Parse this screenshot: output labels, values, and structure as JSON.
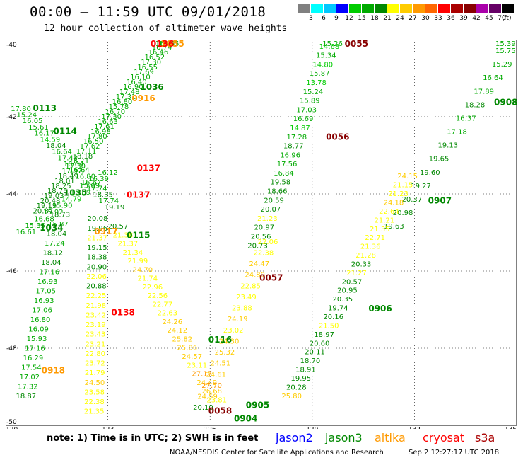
{
  "title": "00:00 – 11:59 UTC 09/01/2018",
  "subtitle": "12 hour collection of altimeter wave heights",
  "colorbar": {
    "colors": [
      "#808080",
      "#00ffff",
      "#00c8ff",
      "#0000ff",
      "#00cc00",
      "#00aa00",
      "#008800",
      "#ffff00",
      "#ffcc00",
      "#ff9900",
      "#ff6600",
      "#ff0000",
      "#aa0000",
      "#880000",
      "#aa00aa",
      "#660066",
      "#000000"
    ],
    "labels": [
      "3",
      "6",
      "9",
      "12",
      "15",
      "18",
      "21",
      "24",
      "27",
      "30",
      "33",
      "36",
      "39",
      "42",
      "45",
      "70"
    ],
    "unit": "(ft)"
  },
  "axes": {
    "x_ticks": [
      "120",
      "123",
      "126",
      "129",
      "132",
      "135"
    ],
    "y_ticks": [
      "-40",
      "-42",
      "-44",
      "-46",
      "-48",
      "-50"
    ],
    "xlim": [
      120,
      135
    ],
    "ylim": [
      -50,
      -40
    ]
  },
  "note": "note: 1) Time is in UTC; 2) SWH is in feet",
  "legend": [
    {
      "name": "jason2",
      "color": "#0000ff"
    },
    {
      "name": "jason3",
      "color": "#008800"
    },
    {
      "name": "altika",
      "color": "#ff9900"
    },
    {
      "name": "cryosat",
      "color": "#ff0000"
    },
    {
      "name": "s3a",
      "color": "#aa0000"
    }
  ],
  "credit": "NOAA/NESDIS Center for Satellite Applications and Research",
  "timestamp": "Sep  2 12:27:17 UTC 2018",
  "time_labels": [
    {
      "text": "0055",
      "lon": 129.95,
      "lat": -40.0,
      "color": "#880000"
    },
    {
      "text": "1055",
      "lon": 124.55,
      "lat": -40.0,
      "color": "#ff9900"
    },
    {
      "text": "0136",
      "lon": 124.25,
      "lat": -40.15,
      "color": "#ff0000"
    },
    {
      "text": "1036",
      "lon": 123.95,
      "lat": -41.3,
      "color": "#008800"
    },
    {
      "text": "0916",
      "lon": 123.7,
      "lat": -41.6,
      "color": "#ff9900"
    },
    {
      "text": "0113",
      "lon": 120.8,
      "lat": -41.85,
      "color": "#008800"
    },
    {
      "text": "0114",
      "lon": 121.4,
      "lat": -42.45,
      "color": "#008800"
    },
    {
      "text": "0056",
      "lon": 129.4,
      "lat": -42.6,
      "color": "#880000"
    },
    {
      "text": "0908",
      "lon": 134.6,
      "lat": -41.7,
      "color": "#008800"
    },
    {
      "text": "0137",
      "lon": 123.85,
      "lat": -43.4,
      "color": "#ff0000"
    },
    {
      "text": "0137",
      "lon": 123.55,
      "lat": -44.1,
      "color": "#ff0000"
    },
    {
      "text": "1035",
      "lon": 121.7,
      "lat": -44.05,
      "color": "#008800"
    },
    {
      "text": "0907",
      "lon": 132.4,
      "lat": -44.25,
      "color": "#008800"
    },
    {
      "text": "1034",
      "lon": 121.0,
      "lat": -44.95,
      "color": "#008800"
    },
    {
      "text": "0917",
      "lon": 122.6,
      "lat": -45.05,
      "color": "#ff9900"
    },
    {
      "text": "0115",
      "lon": 123.55,
      "lat": -45.15,
      "color": "#008800"
    },
    {
      "text": "0057",
      "lon": 127.45,
      "lat": -46.25,
      "color": "#880000"
    },
    {
      "text": "0906",
      "lon": 130.65,
      "lat": -47.05,
      "color": "#008800"
    },
    {
      "text": "0138",
      "lon": 123.1,
      "lat": -47.15,
      "color": "#ff0000"
    },
    {
      "text": "0116",
      "lon": 125.95,
      "lat": -47.85,
      "color": "#008800"
    },
    {
      "text": "0918",
      "lon": 121.05,
      "lat": -48.65,
      "color": "#ff9900"
    },
    {
      "text": "0905",
      "lon": 127.05,
      "lat": -49.55,
      "color": "#008800"
    },
    {
      "text": "0058",
      "lon": 125.95,
      "lat": -49.7,
      "color": "#880000"
    },
    {
      "text": "0904",
      "lon": 126.7,
      "lat": -49.9,
      "color": "#008800"
    }
  ],
  "chart_data": {
    "type": "scatter",
    "title": "00:00 – 11:59 UTC 09/01/2018",
    "subtitle": "12 hour collection of altimeter wave heights",
    "xlim": [
      120,
      135
    ],
    "ylim": [
      -50,
      -40
    ],
    "grid": true,
    "legend_position": "bottom",
    "unit": "ft",
    "tracks": [
      {
        "name": "jason3 1055 pass",
        "mission": "jason3",
        "lon_start": 124.5,
        "lat_start": -40.0,
        "lon_end": 120.8,
        "lat_end": -44.5,
        "values": [
          "16.65",
          "16.97",
          "16.74",
          "16.46",
          "16.52",
          "17.30",
          "16.55",
          "17.69",
          "16.10",
          "16.40",
          "16.90",
          "17.48",
          "17.31",
          "16.80",
          "15.78",
          "16.70",
          "17.30",
          "16.63",
          "17.61",
          "16.98",
          "17.80",
          "16.50",
          "17.62",
          "17.11",
          "18.18",
          "16.71",
          "17.30",
          "17.07",
          "18.49",
          "18.01",
          "18.25",
          "18.75",
          "19.03",
          "20.48",
          "19.19",
          "20.87"
        ]
      },
      {
        "name": "jason3 0113 pass",
        "mission": "jason3",
        "lon_start": 120.15,
        "lat_start": -41.85,
        "lon_end": 122.9,
        "lat_end": -44.4,
        "values": [
          "17.80",
          "15.24",
          "16.05",
          "15.61",
          "16.17",
          "14.59",
          "18.04",
          "16.64",
          "17.43",
          "16.64",
          "16.64",
          "16.80",
          "16.67",
          "17.74",
          "18.35",
          "17.74",
          "19.19"
        ]
      },
      {
        "name": "jason3 1034 pass",
        "mission": "jason3",
        "lon_start": 122.7,
        "lat_start": -43.5,
        "lon_end": 120.3,
        "lat_end": -45.05,
        "values": [
          "16.12",
          "16.39",
          "15.69",
          "15.89",
          "14.79",
          "15.90",
          "15.92",
          "16.68",
          "15.35",
          "16.61"
        ]
      },
      {
        "name": "jason3 0115 pass",
        "mission": "jason3",
        "lon_start": 121.3,
        "lat_start": -44.6,
        "lon_end": 120.3,
        "lat_end": -49.3,
        "values": [
          "18.73",
          "15.87",
          "18.04",
          "17.24",
          "18.12",
          "18.04",
          "17.16",
          "16.93",
          "17.05",
          "16.93",
          "17.06",
          "16.80",
          "16.09",
          "15.93",
          "17.16",
          "16.29",
          "17.54",
          "17.02",
          "17.32",
          "18.87"
        ]
      },
      {
        "name": "altika 0917 pass",
        "mission": "altika",
        "lon_start": 122.4,
        "lat_start": -44.7,
        "lon_end": 122.3,
        "lat_end": -49.7,
        "values": [
          "20.08",
          "19.96",
          "21.37",
          "19.15",
          "18.38",
          "20.90",
          "22.06",
          "20.88",
          "22.25",
          "21.98",
          "23.42",
          "23.19",
          "23.43",
          "23.21",
          "22.80",
          "23.72",
          "21.79",
          "24.50",
          "23.58",
          "22.38",
          "21.35"
        ]
      },
      {
        "name": "altika 0138 pass",
        "mission": "altika",
        "lon_start": 123.0,
        "lat_start": -44.9,
        "lon_end": 125.9,
        "lat_end": -49.4,
        "values": [
          "20.57",
          "21.38",
          "21.37",
          "21.34",
          "21.99",
          "24.70",
          "21.74",
          "22.96",
          "22.56",
          "22.77",
          "22.63",
          "24.26",
          "24.12",
          "25.82",
          "25.86",
          "24.57",
          "23.11",
          "27.17",
          "24.49",
          "26.68",
          "23.81"
        ]
      },
      {
        "name": "s3a 0057 pass",
        "mission": "altika",
        "lon_start": 127.4,
        "lat_start": -45.3,
        "lon_end": 125.5,
        "lat_end": -49.6,
        "values": [
          "22.06",
          "22.38",
          "24.47",
          "24.89",
          "22.85",
          "23.49",
          "23.88",
          "24.19",
          "23.02",
          "24.30",
          "25.32",
          "24.51",
          "24.61",
          "27.70",
          "24.59",
          "20.10"
        ]
      },
      {
        "name": "jason3 0056 pass",
        "mission": "jason3",
        "lon_start": 129.3,
        "lat_start": -40.0,
        "lon_end": 127.1,
        "lat_end": -45.4,
        "values": [
          "15.26",
          "14.68",
          "15.34",
          "14.80",
          "15.87",
          "13.78",
          "15.24",
          "15.89",
          "17.03",
          "16.69",
          "14.87",
          "17.28",
          "18.77",
          "16.96",
          "17.56",
          "16.84",
          "19.58",
          "18.66",
          "20.59",
          "20.07",
          "21.23",
          "20.97",
          "20.56",
          "20.73"
        ]
      },
      {
        "name": "jason3 0908 pass",
        "mission": "jason3",
        "lon_start": 134.8,
        "lat_start": -40.0,
        "lon_end": 131.1,
        "lat_end": -44.9,
        "values": [
          "15.39",
          "15.75",
          "15.29",
          "16.64",
          "17.89",
          "18.28",
          "16.37",
          "17.18",
          "19.13",
          "19.65",
          "19.60",
          "19.27",
          "20.37",
          "20.98",
          "19.63"
        ]
      },
      {
        "name": "altika 0907 pass",
        "mission": "altika",
        "lon_start": 131.5,
        "lat_start": -43.6,
        "lon_end": 128.1,
        "lat_end": -49.3,
        "values": [
          "24.15",
          "21.15",
          "21.23",
          "24.18",
          "22.64",
          "21.21",
          "21.35",
          "22.71",
          "21.36",
          "21.28",
          "20.33",
          "21.27",
          "20.57",
          "20.95",
          "20.35",
          "19.74",
          "20.16",
          "21.50",
          "18.97",
          "20.60",
          "20.11",
          "18.70",
          "18.91",
          "19.95",
          "20.28",
          "25.80"
        ]
      }
    ]
  }
}
